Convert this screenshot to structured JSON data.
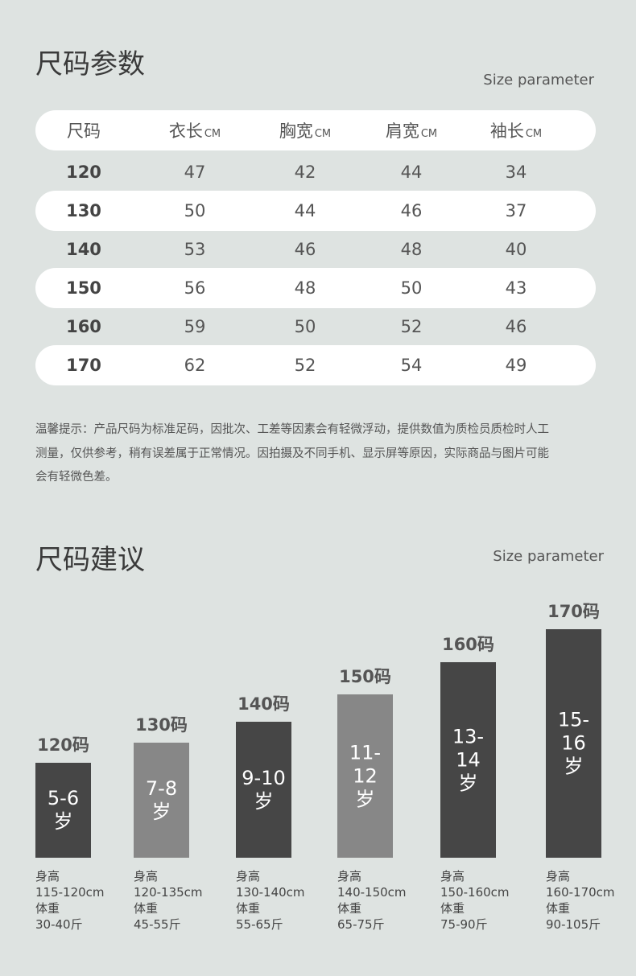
{
  "size_table": {
    "title": "尺码参数",
    "subtitle": "Size parameter",
    "header": [
      {
        "label": "尺码"
      },
      {
        "label": "衣长",
        "unit": "CM"
      },
      {
        "label": "胸宽",
        "unit": "CM"
      },
      {
        "label": "肩宽",
        "unit": "CM"
      },
      {
        "label": "袖长",
        "unit": "CM"
      }
    ],
    "rows": [
      [
        "120",
        "47",
        "42",
        "44",
        "34"
      ],
      [
        "130",
        "50",
        "44",
        "46",
        "37"
      ],
      [
        "140",
        "53",
        "46",
        "48",
        "40"
      ],
      [
        "150",
        "56",
        "48",
        "50",
        "43"
      ],
      [
        "160",
        "59",
        "50",
        "52",
        "46"
      ],
      [
        "170",
        "62",
        "52",
        "54",
        "49"
      ]
    ],
    "notice": [
      "温馨提示：产品尺码为标准足码，因批次、工差等因素会有轻微浮动，提供数值为质检员质检时人工",
      "测量，仅供参考，稍有误差属于正常情况。因拍摄及不同手机、显示屏等原因，实际商品与图片可能",
      "会有轻微色差。"
    ]
  },
  "size_advice": {
    "title": "尺码建议",
    "subtitle": "Size parameter",
    "items": [
      {
        "size": "120码",
        "age_lines": [
          "5-6",
          "岁"
        ],
        "info": [
          "身高",
          "115-120cm",
          "体重",
          "30-40斤"
        ]
      },
      {
        "size": "130码",
        "age_lines": [
          "7-8",
          "岁"
        ],
        "info": [
          "身高",
          "120-135cm",
          "体重",
          "45-55斤"
        ]
      },
      {
        "size": "140码",
        "age_lines": [
          "9-10",
          "岁"
        ],
        "info": [
          "身高",
          "130-140cm",
          "体重",
          "55-65斤"
        ]
      },
      {
        "size": "150码",
        "age_lines": [
          "11-12",
          "岁"
        ],
        "info": [
          "身高",
          "140-150cm",
          "体重",
          "65-75斤"
        ]
      },
      {
        "size": "160码",
        "age_lines": [
          "13-14",
          "岁"
        ],
        "info": [
          "身高",
          "150-160cm",
          "体重",
          "75-90斤"
        ]
      },
      {
        "size": "170码",
        "age_lines": [
          "15-16",
          "岁"
        ],
        "info": [
          "身高",
          "160-170cm",
          "体重",
          "90-105斤"
        ]
      }
    ]
  }
}
